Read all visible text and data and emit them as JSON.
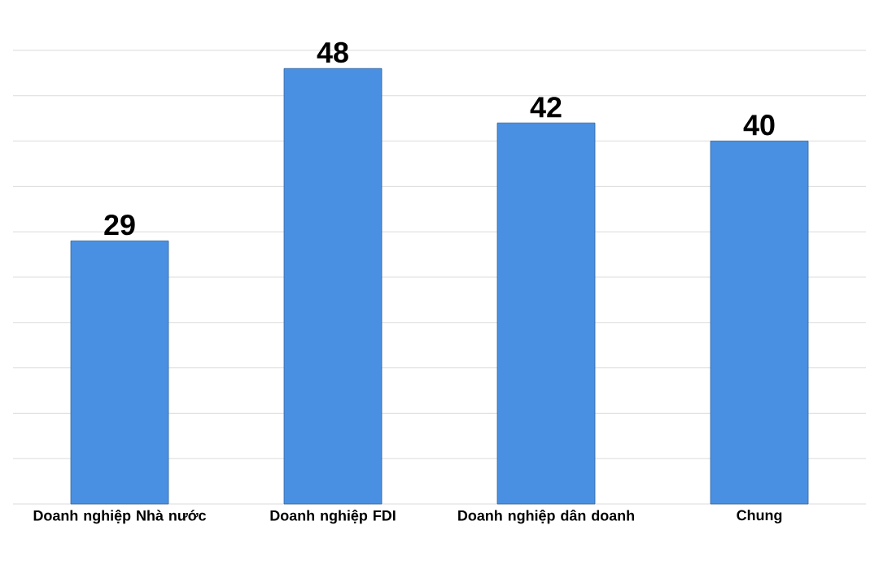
{
  "chart_data": {
    "type": "bar",
    "categories": [
      "Doanh nghiệp Nhà nước",
      "Doanh nghiệp FDI",
      "Doanh nghiệp dân doanh",
      "Chung"
    ],
    "values": [
      29,
      48,
      42,
      40
    ],
    "color": "#4a90e2",
    "data_labels": true,
    "tick_labels": "x",
    "grid": "y"
  }
}
